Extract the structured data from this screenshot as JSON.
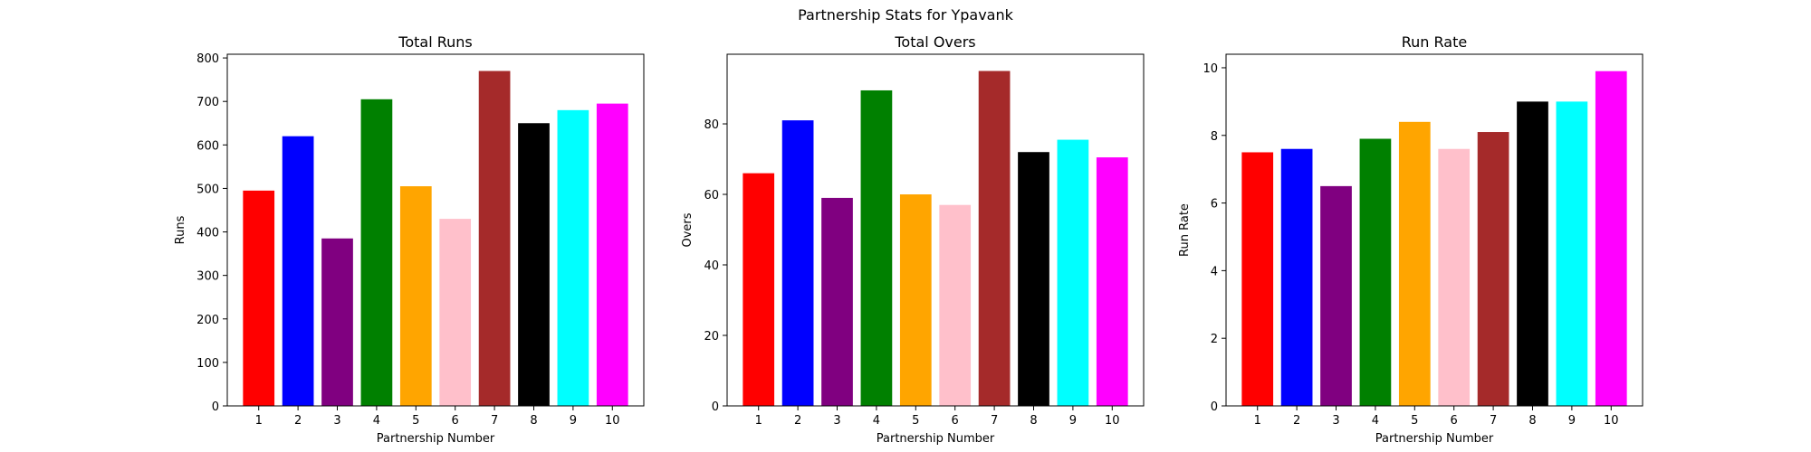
{
  "figure": {
    "suptitle": "Partnership Stats for Ypavank"
  },
  "chart_data": [
    {
      "type": "bar",
      "title": "Total Runs",
      "xlabel": "Partnership Number",
      "ylabel": "Runs",
      "categories": [
        "1",
        "2",
        "3",
        "4",
        "5",
        "6",
        "7",
        "8",
        "9",
        "10"
      ],
      "values": [
        495,
        620,
        385,
        705,
        505,
        430,
        770,
        650,
        680,
        695
      ],
      "colors": [
        "#ff0000",
        "#0000ff",
        "#800080",
        "#008000",
        "#ffa500",
        "#ffc0cb",
        "#a52a2a",
        "#000000",
        "#00ffff",
        "#ff00ff"
      ],
      "ylim": [
        0,
        808.5
      ],
      "yticks": [
        0,
        100,
        200,
        300,
        400,
        500,
        600,
        700,
        800
      ],
      "grid": false,
      "legend": "none"
    },
    {
      "type": "bar",
      "title": "Total Overs",
      "xlabel": "Partnership Number",
      "ylabel": "Overs",
      "categories": [
        "1",
        "2",
        "3",
        "4",
        "5",
        "6",
        "7",
        "8",
        "9",
        "10"
      ],
      "values": [
        66,
        81,
        59,
        89.5,
        60,
        57,
        95,
        72,
        75.5,
        70.5
      ],
      "colors": [
        "#ff0000",
        "#0000ff",
        "#800080",
        "#008000",
        "#ffa500",
        "#ffc0cb",
        "#a52a2a",
        "#000000",
        "#00ffff",
        "#ff00ff"
      ],
      "ylim": [
        0,
        99.75
      ],
      "yticks": [
        0,
        20,
        40,
        60,
        80
      ],
      "grid": false,
      "legend": "none"
    },
    {
      "type": "bar",
      "title": "Run Rate",
      "xlabel": "Partnership Number",
      "ylabel": "Run Rate",
      "categories": [
        "1",
        "2",
        "3",
        "4",
        "5",
        "6",
        "7",
        "8",
        "9",
        "10"
      ],
      "values": [
        7.5,
        7.6,
        6.5,
        7.9,
        8.4,
        7.6,
        8.1,
        9.0,
        9.0,
        9.9
      ],
      "colors": [
        "#ff0000",
        "#0000ff",
        "#800080",
        "#008000",
        "#ffa500",
        "#ffc0cb",
        "#a52a2a",
        "#000000",
        "#00ffff",
        "#ff00ff"
      ],
      "ylim": [
        0,
        10.4
      ],
      "yticks": [
        0,
        2,
        4,
        6,
        8,
        10
      ],
      "grid": false,
      "legend": "none"
    }
  ]
}
